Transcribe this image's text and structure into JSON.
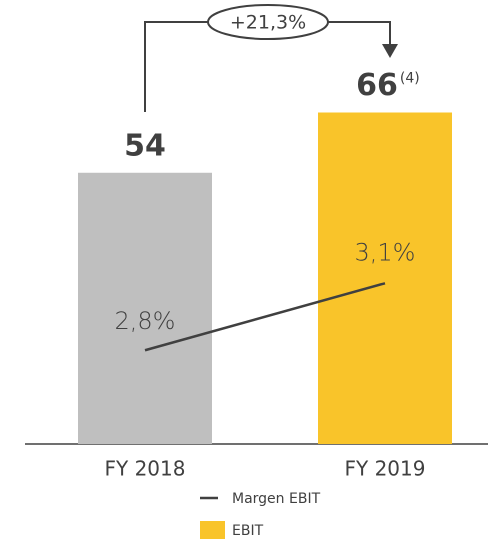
{
  "chart_data": {
    "type": "bar",
    "categories": [
      "FY 2018",
      "FY 2019"
    ],
    "series": [
      {
        "name": "EBIT",
        "type": "bar",
        "color": "#f9c42a",
        "colors": [
          "#bfbfbf",
          "#f9c42a"
        ],
        "values": [
          54,
          66
        ]
      },
      {
        "name": "Margen EBIT",
        "type": "line",
        "axis": "y2",
        "color": "#404040",
        "values": [
          2.8,
          3.1
        ],
        "value_labels": [
          "2,8%",
          "3,1%"
        ]
      }
    ],
    "ylim": [
      0,
      88
    ],
    "y2lim": [
      2.38,
      4.36
    ],
    "annotation": "+21,3%",
    "footnote_mark": "(4)"
  }
}
